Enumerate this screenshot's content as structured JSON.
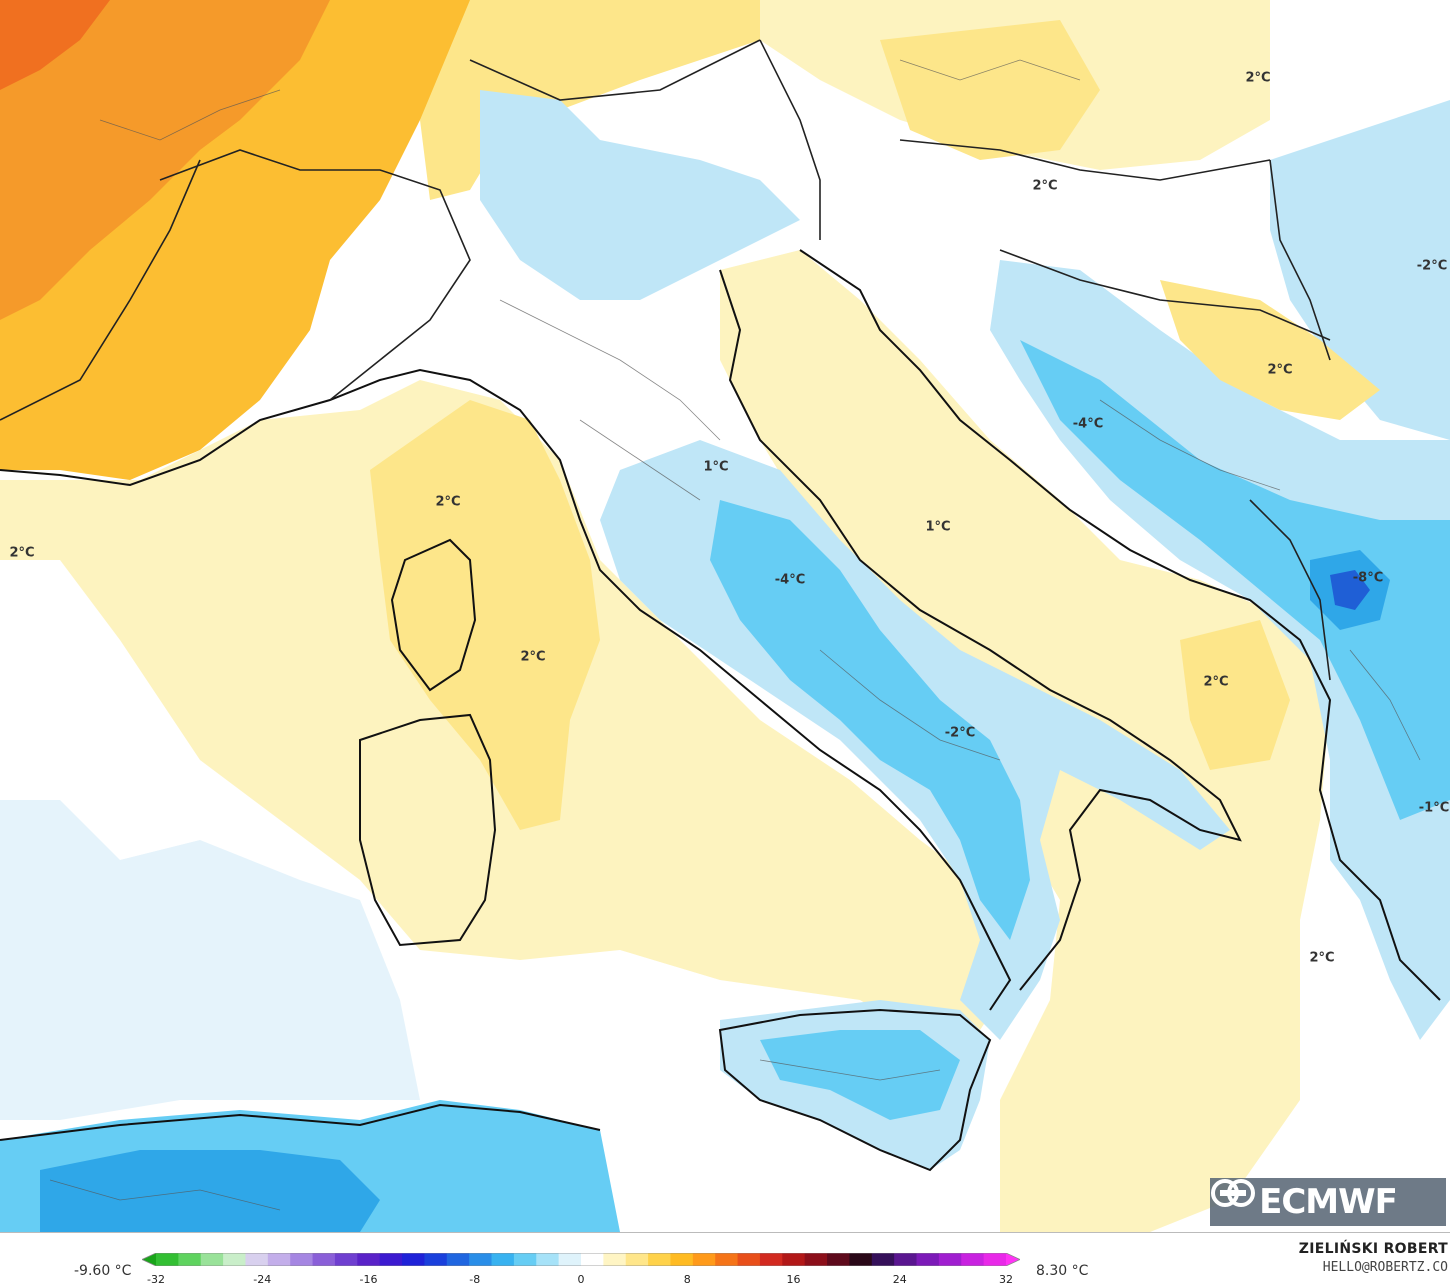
{
  "map": {
    "temperature_labels": [
      {
        "id": "west-sea",
        "text": "2°C"
      },
      {
        "id": "ligurian-sea",
        "text": "2°C"
      },
      {
        "id": "tyrrhenian-north",
        "text": "2°C"
      },
      {
        "id": "adriatic",
        "text": "1°C"
      },
      {
        "id": "central-apennines",
        "text": "-4°C"
      },
      {
        "id": "campania",
        "text": "-2°C"
      },
      {
        "id": "bosnia",
        "text": "-4°C"
      },
      {
        "id": "montenegro",
        "text": "-8°C"
      },
      {
        "id": "southern-adriatic",
        "text": "2°C"
      },
      {
        "id": "ionian-sea",
        "text": "2°C"
      },
      {
        "id": "greece-west",
        "text": "-1°C"
      },
      {
        "id": "hungary",
        "text": "2°C"
      },
      {
        "id": "slovenia",
        "text": "2°C"
      },
      {
        "id": "serbia",
        "text": "2°C"
      },
      {
        "id": "romania",
        "text": "-2°C"
      },
      {
        "id": "tuscany",
        "text": "1°C"
      }
    ],
    "colors": {
      "very-warm": "#f08020",
      "warm": "#fcbe32",
      "mild": "#fde68a",
      "slight-warm": "#fdf3bf",
      "neutral": "#ffffff",
      "slight-cold": "#e5f3fb",
      "cold": "#bfe6f7",
      "colder": "#5dc9f0",
      "cold-deep": "#2fa7e8",
      "very-cold": "#1f5fd6"
    }
  },
  "logo": {
    "text": "ECMWF"
  },
  "footer": {
    "min_value": "-9.60 °C",
    "max_value": "8.30 °C",
    "scale_ticks": [
      "-32",
      "-24",
      "-16",
      "-8",
      "0",
      "8",
      "16",
      "24",
      "32"
    ],
    "author_name": "ZIELIŃSKI ROBERT",
    "author_email": "HELLO@ROBERTZ.CO"
  },
  "legend_colors": [
    "#19a41a",
    "#33bf33",
    "#5fd35f",
    "#99e299",
    "#c9eec9",
    "#d8d0ee",
    "#c3aeea",
    "#a586e2",
    "#8a5fd8",
    "#6f3fd0",
    "#5a22c8",
    "#3c1ad0",
    "#1f22d8",
    "#1a40dc",
    "#2066e0",
    "#2a8ee8",
    "#38b2f0",
    "#66cdf4",
    "#a6e2f8",
    "#dff3fb",
    "#ffffff",
    "#fff5c4",
    "#ffe68a",
    "#ffd24a",
    "#ffbb22",
    "#ff9a1a",
    "#f57418",
    "#e84f1a",
    "#d22a20",
    "#b21818",
    "#8c0f1a",
    "#5e0a1c",
    "#2a0818",
    "#35105a",
    "#5a1690",
    "#7c1ab8",
    "#a01ed0",
    "#c822e0",
    "#e829e8",
    "#ff33f5"
  ]
}
